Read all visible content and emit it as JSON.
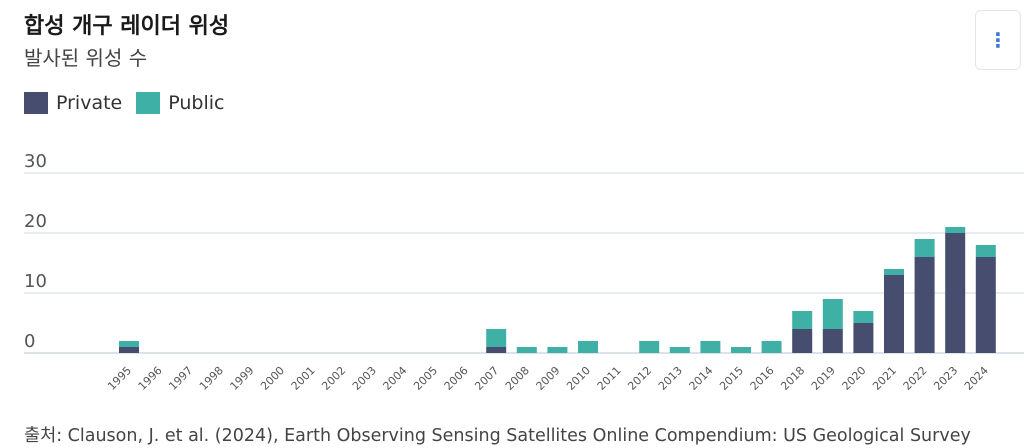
{
  "header": {
    "title": "합성 개구 레이더 위성",
    "subtitle": "발사된 위성 수",
    "menu_icon": "⋮"
  },
  "colors": {
    "private": "#474d6e",
    "public": "#3fb0a5",
    "gridline": "#cfd8e0"
  },
  "legend": [
    {
      "label": "Private",
      "color": "#474d6e"
    },
    {
      "label": "Public",
      "color": "#3fb0a5"
    }
  ],
  "footer": {
    "source": "출처: Clauson, J. et al. (2024), Earth Observing Sensing Satellites Online Compendium: US Geological Survey"
  },
  "chart_data": {
    "type": "bar",
    "stacked": true,
    "categories": [
      "1995",
      "1996",
      "1997",
      "1998",
      "1999",
      "2000",
      "2001",
      "2002",
      "2003",
      "2004",
      "2005",
      "2006",
      "2007",
      "2008",
      "2009",
      "2010",
      "2011",
      "2012",
      "2013",
      "2014",
      "2015",
      "2016",
      "2018",
      "2019",
      "2020",
      "2021",
      "2022",
      "2023",
      "2024"
    ],
    "series": [
      {
        "name": "Private",
        "values": [
          1,
          0,
          0,
          0,
          0,
          0,
          0,
          0,
          0,
          0,
          0,
          0,
          1,
          0,
          0,
          0,
          0,
          0,
          0,
          0,
          0,
          0,
          4,
          4,
          5,
          13,
          16,
          20,
          16
        ]
      },
      {
        "name": "Public",
        "values": [
          1,
          0,
          0,
          0,
          0,
          0,
          0,
          0,
          0,
          0,
          0,
          0,
          3,
          1,
          1,
          2,
          0,
          2,
          1,
          2,
          1,
          2,
          3,
          5,
          2,
          1,
          3,
          1,
          2
        ]
      }
    ],
    "yticks": [
      0,
      10,
      20,
      30
    ],
    "ylim": [
      0,
      30
    ],
    "grid": true,
    "legend_position": "top-left"
  }
}
